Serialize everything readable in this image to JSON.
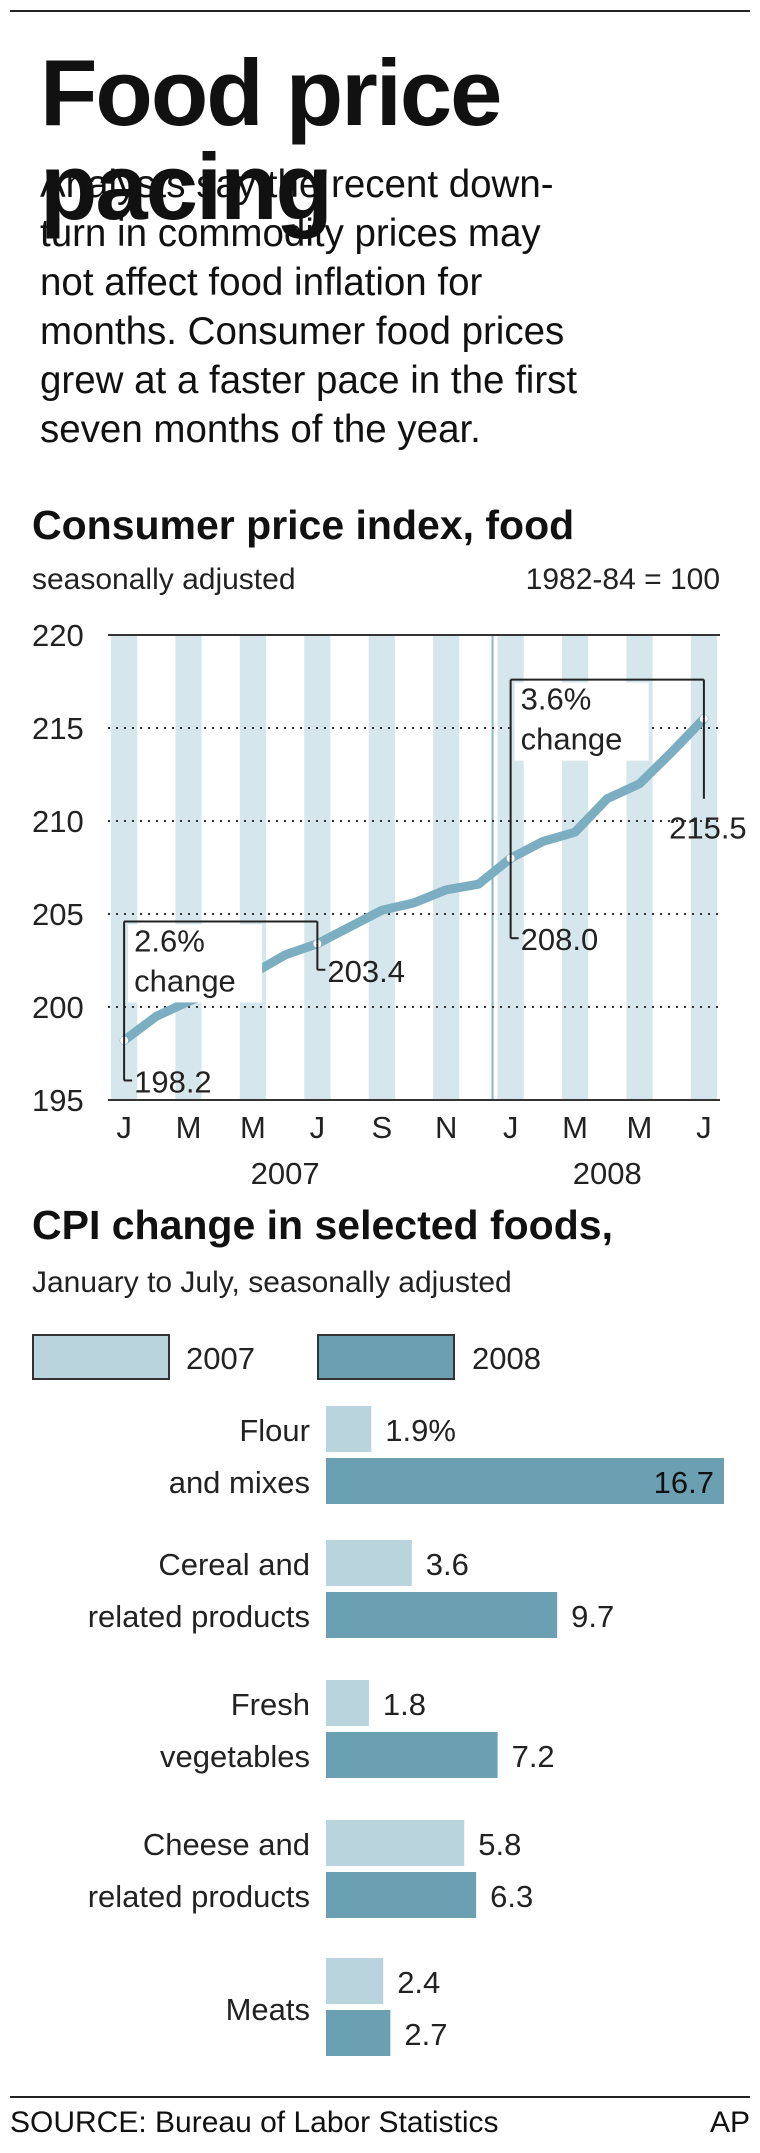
{
  "headline": "Food price pacing",
  "deck": [
    "Analysts say the recent down-",
    "turn in commodity prices may",
    "not affect food inflation for",
    "months. Consumer food prices",
    "grew at a faster pace in the first",
    "seven months of the year."
  ],
  "colors": {
    "stripe": "#d5e6ec",
    "line": "#7aaec0",
    "bar_2007": "#b9d4dd",
    "bar_2008": "#6b9fb2"
  },
  "chart_data": [
    {
      "type": "line",
      "title": "Consumer price index, food",
      "subtitle": "seasonally adjusted",
      "note": "1982-84 = 100",
      "ylim": [
        195,
        220
      ],
      "yticks": [
        195,
        200,
        205,
        210,
        215,
        220
      ],
      "x_tick_labels": [
        "J",
        "M",
        "M",
        "J",
        "S",
        "N",
        "J",
        "M",
        "M",
        "J"
      ],
      "year_labels": [
        "2007",
        "2008"
      ],
      "grid": "dotted horizontal lines at 205, 210, 215",
      "series": [
        {
          "x": [
            "2007-01",
            "2007-02",
            "2007-03",
            "2007-04",
            "2007-05",
            "2007-06",
            "2007-07",
            "2007-08",
            "2007-09",
            "2007-10",
            "2007-11",
            "2007-12",
            "2008-01",
            "2008-02",
            "2008-03",
            "2008-04",
            "2008-05",
            "2008-06",
            "2008-07"
          ],
          "values": [
            198.2,
            199.5,
            200.3,
            201.0,
            201.8,
            202.8,
            203.4,
            204.3,
            205.2,
            205.6,
            206.3,
            206.6,
            208.0,
            208.9,
            209.4,
            211.2,
            212.0,
            213.7,
            215.5
          ]
        }
      ],
      "annotations": [
        {
          "text": "2.6%",
          "text2": "change",
          "from": "2007-01",
          "to": "2007-07"
        },
        {
          "text": "3.6%",
          "text2": "change",
          "from": "2008-01",
          "to": "2008-07"
        }
      ],
      "data_labels": [
        {
          "x": "2007-01",
          "text": "198.2"
        },
        {
          "x": "2007-07",
          "text": "203.4"
        },
        {
          "x": "2008-01",
          "text": "208.0"
        },
        {
          "x": "2008-07",
          "text": "215.5"
        }
      ]
    },
    {
      "type": "bar",
      "title": "CPI change in selected foods,",
      "subtitle": "January to July, seasonally adjusted",
      "orientation": "horizontal",
      "legend": "top-left",
      "categories": [
        [
          "Flour",
          "and mixes"
        ],
        [
          "Cereal and",
          "related products"
        ],
        [
          "Fresh",
          "vegetables"
        ],
        [
          "Cheese and",
          "related products"
        ],
        [
          "Meats"
        ]
      ],
      "series": [
        {
          "name": "2007",
          "values": [
            1.9,
            3.6,
            1.8,
            5.8,
            2.4
          ],
          "labels": [
            "1.9%",
            "3.6",
            "1.8",
            "5.8",
            "2.4"
          ]
        },
        {
          "name": "2008",
          "values": [
            16.7,
            9.7,
            7.2,
            6.3,
            2.7
          ],
          "labels": [
            "16.7",
            "9.7",
            "7.2",
            "6.3",
            "2.7"
          ]
        }
      ]
    }
  ],
  "footer": {
    "source": "SOURCE: Bureau of Labor Statistics",
    "credit": "AP"
  }
}
